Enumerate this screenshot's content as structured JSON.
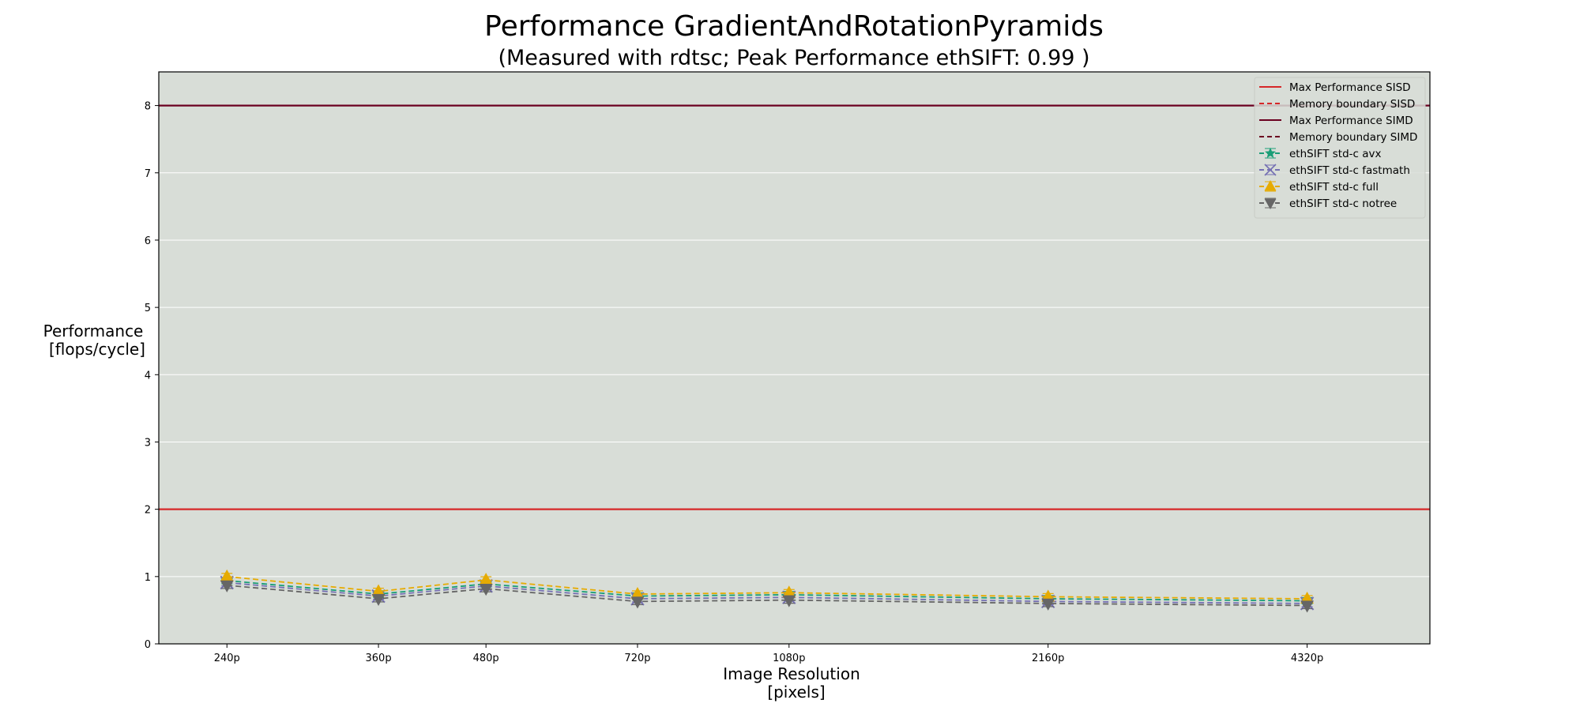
{
  "chart_data": {
    "type": "line",
    "title": "Performance GradientAndRotationPyramids",
    "subtitle": "(Measured with rdtsc; Peak Performance ethSIFT: 0.99 )",
    "xlabel": [
      "Image Resolution",
      "[pixels]"
    ],
    "ylabel": [
      "Performance",
      "[flops/cycle]"
    ],
    "categories": [
      "240p",
      "360p",
      "480p",
      "720p",
      "1080p",
      "2160p",
      "4320p"
    ],
    "x_positions": [
      240,
      360,
      480,
      720,
      1080,
      2160,
      4320
    ],
    "x_scale": "log",
    "xlim": [
      200,
      6000
    ],
    "ylim": [
      0,
      8.5
    ],
    "yticks": [
      0,
      1,
      2,
      3,
      4,
      5,
      6,
      7,
      8
    ],
    "grid": true,
    "legend_position": "top-right",
    "background_color": "#d8ddd7",
    "reference_lines": [
      {
        "name": "Max Performance SISD",
        "value": 2,
        "color": "#d62728",
        "dash": "solid",
        "visible": true
      },
      {
        "name": "Memory boundary SISD",
        "value": null,
        "color": "#d62728",
        "dash": "dashed",
        "visible": false
      },
      {
        "name": "Max Performance SIMD",
        "value": 8,
        "color": "#6b0020",
        "dash": "solid",
        "visible": true
      },
      {
        "name": "Memory boundary SIMD",
        "value": null,
        "color": "#6b0020",
        "dash": "dashed",
        "visible": false
      }
    ],
    "series": [
      {
        "name": "ethSIFT std-c avx",
        "color": "#1b9e77",
        "marker": "star",
        "values": [
          0.94,
          0.74,
          0.89,
          0.71,
          0.73,
          0.67,
          0.64
        ]
      },
      {
        "name": "ethSIFT std-c fastmath",
        "color": "#7570b3",
        "marker": "x",
        "values": [
          0.91,
          0.71,
          0.86,
          0.67,
          0.69,
          0.63,
          0.6
        ]
      },
      {
        "name": "ethSIFT std-c full",
        "color": "#e6ab02",
        "marker": "triangle-up",
        "values": [
          1.0,
          0.78,
          0.95,
          0.74,
          0.76,
          0.7,
          0.67
        ]
      },
      {
        "name": "ethSIFT std-c notree",
        "color": "#666666",
        "marker": "triangle-down",
        "values": [
          0.87,
          0.67,
          0.82,
          0.63,
          0.65,
          0.6,
          0.57
        ]
      }
    ]
  }
}
